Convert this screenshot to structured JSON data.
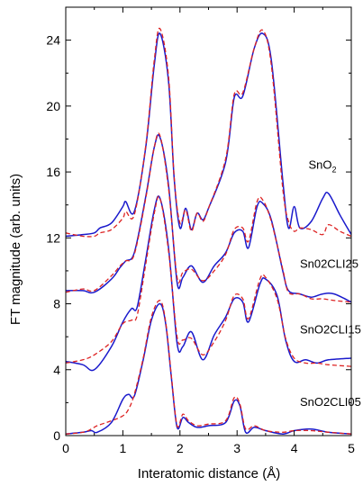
{
  "chart_data": {
    "type": "line",
    "xlabel": "Interatomic distance (Å)",
    "ylabel": "FT magnitude (arb. units)",
    "xlim": [
      0,
      5
    ],
    "ylim": [
      0,
      26
    ],
    "xticks": [
      0,
      1,
      2,
      3,
      4,
      5
    ],
    "yticks": [
      0,
      4,
      8,
      12,
      16,
      20,
      24
    ],
    "grid": false,
    "legend": "none",
    "colors": {
      "solid": "#1a1acc",
      "dashed": "#dd2222"
    },
    "annotations": [
      {
        "text": "SnO",
        "sub": "2",
        "x": 4.25,
        "y": 16.2
      },
      {
        "text": "Sn02CLI25",
        "x": 4.1,
        "y": 10.2
      },
      {
        "text": "SnO2CLI15",
        "x": 4.1,
        "y": 6.2
      },
      {
        "text": "SnO2CLI05",
        "x": 4.1,
        "y": 1.8
      }
    ],
    "series": [
      {
        "style": "solid",
        "color": "#1a1acc",
        "x": [
          0.0,
          0.3,
          0.5,
          0.6,
          0.8,
          1.0,
          1.05,
          1.2,
          1.4,
          1.55,
          1.65,
          1.8,
          1.9,
          2.0,
          2.1,
          2.2,
          2.3,
          2.4,
          2.5,
          2.8,
          2.95,
          3.1,
          3.3,
          3.45,
          3.6,
          3.8,
          3.9,
          4.0,
          4.1,
          4.3,
          4.5,
          4.6,
          4.8,
          5.0
        ],
        "y": [
          12.1,
          12.2,
          12.3,
          12.6,
          12.9,
          13.9,
          14.2,
          13.6,
          17.5,
          22.5,
          24.4,
          21.5,
          15.5,
          12.6,
          13.8,
          12.5,
          13.5,
          13.1,
          13.8,
          16.6,
          20.5,
          20.6,
          23.5,
          24.4,
          22.8,
          15.5,
          12.6,
          13.9,
          12.6,
          13.0,
          14.4,
          14.7,
          13.4,
          12.2
        ]
      },
      {
        "style": "dashed",
        "color": "#dd2222",
        "x": [
          0.0,
          0.3,
          0.5,
          0.6,
          0.8,
          1.0,
          1.05,
          1.2,
          1.4,
          1.55,
          1.65,
          1.8,
          1.9,
          2.0,
          2.1,
          2.2,
          2.3,
          2.4,
          2.5,
          2.8,
          2.95,
          3.1,
          3.3,
          3.45,
          3.6,
          3.8,
          3.9,
          4.0,
          4.1,
          4.3,
          4.5,
          4.6,
          4.8,
          5.0
        ],
        "y": [
          12.3,
          12.1,
          12.1,
          12.3,
          12.5,
          13.2,
          13.6,
          13.4,
          17.6,
          22.8,
          24.7,
          21.8,
          15.6,
          12.9,
          13.7,
          12.4,
          13.5,
          13.0,
          13.8,
          16.8,
          20.7,
          20.8,
          23.5,
          24.6,
          22.5,
          15.0,
          13.0,
          12.4,
          12.6,
          12.5,
          12.2,
          12.8,
          12.4,
          12.1
        ]
      },
      {
        "style": "solid",
        "color": "#1a1acc",
        "x": [
          0.0,
          0.3,
          0.5,
          0.8,
          0.95,
          1.05,
          1.2,
          1.4,
          1.55,
          1.65,
          1.8,
          1.95,
          2.05,
          2.2,
          2.4,
          2.6,
          2.8,
          2.95,
          3.1,
          3.2,
          3.35,
          3.45,
          3.6,
          3.8,
          3.9,
          4.1,
          4.3,
          4.5,
          4.7,
          5.0
        ],
        "y": [
          8.8,
          8.8,
          8.7,
          9.5,
          10.2,
          10.6,
          11.1,
          14.5,
          17.5,
          18.1,
          15.2,
          9.3,
          9.6,
          10.3,
          9.3,
          10.3,
          11.1,
          12.3,
          12.4,
          11.4,
          13.9,
          14.1,
          13.1,
          10.0,
          8.8,
          8.6,
          8.4,
          8.6,
          8.6,
          8.1
        ]
      },
      {
        "style": "dashed",
        "color": "#dd2222",
        "x": [
          0.0,
          0.3,
          0.5,
          0.8,
          0.95,
          1.05,
          1.2,
          1.4,
          1.55,
          1.65,
          1.8,
          1.95,
          2.05,
          2.2,
          2.4,
          2.6,
          2.8,
          2.95,
          3.1,
          3.2,
          3.35,
          3.45,
          3.6,
          3.8,
          3.9,
          4.1,
          4.3,
          4.5,
          4.7,
          5.0
        ],
        "y": [
          8.7,
          8.9,
          8.8,
          9.7,
          10.3,
          10.6,
          11.0,
          14.4,
          17.5,
          18.2,
          15.0,
          9.6,
          9.9,
          10.1,
          9.4,
          10.0,
          11.0,
          12.5,
          12.6,
          11.8,
          14.2,
          14.3,
          13.0,
          10.1,
          8.7,
          8.6,
          8.3,
          8.3,
          8.2,
          8.1
        ]
      },
      {
        "style": "solid",
        "color": "#1a1acc",
        "x": [
          0.0,
          0.3,
          0.5,
          0.8,
          1.0,
          1.15,
          1.25,
          1.4,
          1.55,
          1.65,
          1.8,
          1.95,
          2.05,
          2.2,
          2.4,
          2.6,
          2.8,
          2.95,
          3.1,
          3.2,
          3.4,
          3.5,
          3.7,
          3.85,
          4.0,
          4.2,
          4.4,
          4.6,
          5.0
        ],
        "y": [
          4.5,
          4.3,
          4.0,
          5.4,
          6.9,
          7.7,
          7.8,
          10.7,
          13.7,
          14.4,
          11.4,
          5.6,
          5.4,
          6.3,
          4.6,
          6.1,
          7.2,
          8.3,
          8.1,
          6.9,
          9.2,
          9.5,
          8.5,
          5.8,
          4.5,
          4.6,
          4.4,
          4.6,
          4.7
        ]
      },
      {
        "style": "dashed",
        "color": "#dd2222",
        "x": [
          0.0,
          0.3,
          0.5,
          0.8,
          1.0,
          1.15,
          1.25,
          1.4,
          1.55,
          1.65,
          1.8,
          1.95,
          2.05,
          2.2,
          2.4,
          2.6,
          2.8,
          2.95,
          3.1,
          3.2,
          3.4,
          3.5,
          3.7,
          3.85,
          4.0,
          4.2,
          4.4,
          4.6,
          5.0
        ],
        "y": [
          4.4,
          4.6,
          4.9,
          5.7,
          6.8,
          7.0,
          7.3,
          10.4,
          13.5,
          14.4,
          11.2,
          6.0,
          5.8,
          5.9,
          4.9,
          5.7,
          7.0,
          8.5,
          8.3,
          7.1,
          9.5,
          9.6,
          8.3,
          5.9,
          4.7,
          4.4,
          4.4,
          4.3,
          4.2
        ]
      },
      {
        "style": "solid",
        "color": "#1a1acc",
        "x": [
          0.0,
          0.3,
          0.45,
          0.55,
          0.8,
          1.0,
          1.1,
          1.2,
          1.35,
          1.5,
          1.65,
          1.75,
          1.85,
          1.95,
          2.05,
          2.15,
          2.3,
          2.5,
          2.8,
          2.95,
          3.05,
          3.15,
          3.3,
          3.5,
          3.8,
          4.0,
          4.3,
          4.6,
          5.0
        ],
        "y": [
          0.1,
          0.2,
          0.3,
          0.2,
          0.8,
          2.2,
          2.5,
          2.4,
          4.5,
          7.0,
          8.0,
          6.8,
          3.5,
          0.5,
          1.1,
          0.8,
          0.5,
          0.6,
          0.8,
          2.1,
          1.8,
          0.2,
          0.5,
          0.3,
          0.1,
          0.3,
          0.4,
          0.2,
          0.1
        ]
      },
      {
        "style": "dashed",
        "color": "#dd2222",
        "x": [
          0.0,
          0.3,
          0.45,
          0.55,
          0.8,
          1.0,
          1.1,
          1.2,
          1.35,
          1.5,
          1.65,
          1.75,
          1.85,
          1.95,
          2.05,
          2.15,
          2.3,
          2.5,
          2.8,
          2.95,
          3.05,
          3.15,
          3.3,
          3.5,
          3.8,
          4.0,
          4.3,
          4.6,
          5.0
        ],
        "y": [
          0.1,
          0.2,
          0.4,
          0.6,
          0.9,
          1.2,
          1.6,
          2.5,
          4.6,
          7.2,
          8.2,
          6.9,
          3.6,
          0.6,
          1.3,
          0.9,
          0.6,
          0.7,
          0.9,
          2.3,
          1.9,
          0.4,
          0.6,
          0.3,
          0.2,
          0.3,
          0.3,
          0.2,
          0.1
        ]
      }
    ]
  }
}
